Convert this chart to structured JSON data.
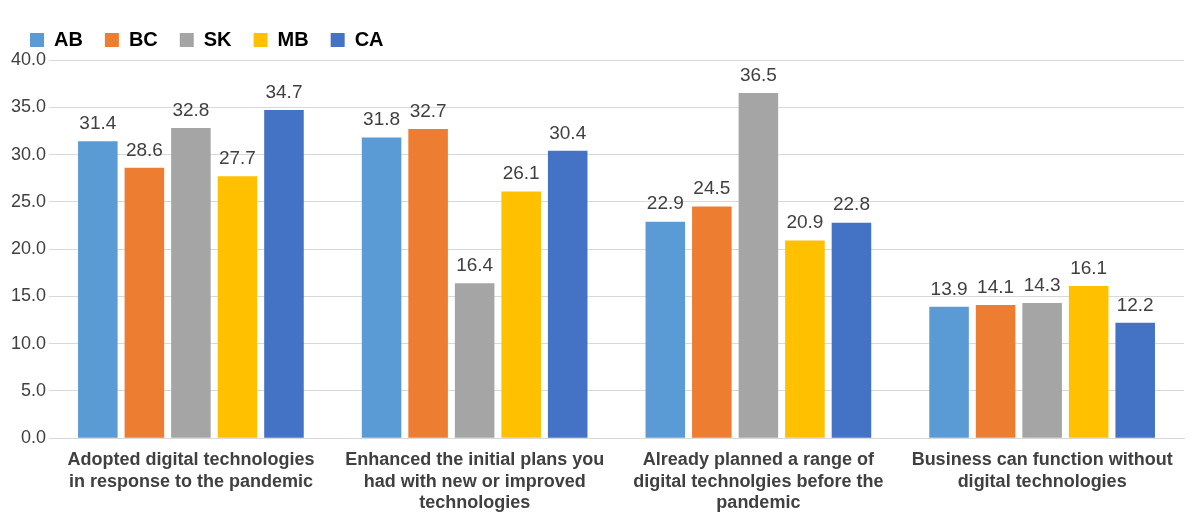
{
  "chart_data": {
    "type": "bar",
    "categories": [
      "Adopted digital technologies in response to the pandemic",
      "Enhanced the initial plans you had with new or improved technologies",
      "Already planned a range of digital technolgies before the pandemic",
      "Business can function without digital technologies"
    ],
    "series": [
      {
        "name": "AB",
        "color": "#5b9bd5",
        "values": [
          31.4,
          31.8,
          22.9,
          13.9
        ]
      },
      {
        "name": "BC",
        "color": "#ed7d31",
        "values": [
          28.6,
          32.7,
          24.5,
          14.1
        ]
      },
      {
        "name": "SK",
        "color": "#a5a5a5",
        "values": [
          32.8,
          16.4,
          36.5,
          14.3
        ]
      },
      {
        "name": "MB",
        "color": "#ffc000",
        "values": [
          27.7,
          26.1,
          20.9,
          16.1
        ]
      },
      {
        "name": "CA",
        "color": "#4472c4",
        "values": [
          34.7,
          30.4,
          22.8,
          12.2
        ]
      }
    ],
    "ylim": [
      0,
      40
    ],
    "yticks": [
      {
        "value": 0,
        "label": "0.0"
      },
      {
        "value": 5,
        "label": "5.0"
      },
      {
        "value": 10,
        "label": "10.0"
      },
      {
        "value": 15,
        "label": "15.0"
      },
      {
        "value": 20,
        "label": "20.0"
      },
      {
        "value": 25,
        "label": "25.0"
      },
      {
        "value": 30,
        "label": "30.0"
      },
      {
        "value": 35,
        "label": "35.0"
      },
      {
        "value": 40,
        "label": "40.0"
      }
    ],
    "grid": "y",
    "legend": "top left",
    "data_labels": true
  }
}
